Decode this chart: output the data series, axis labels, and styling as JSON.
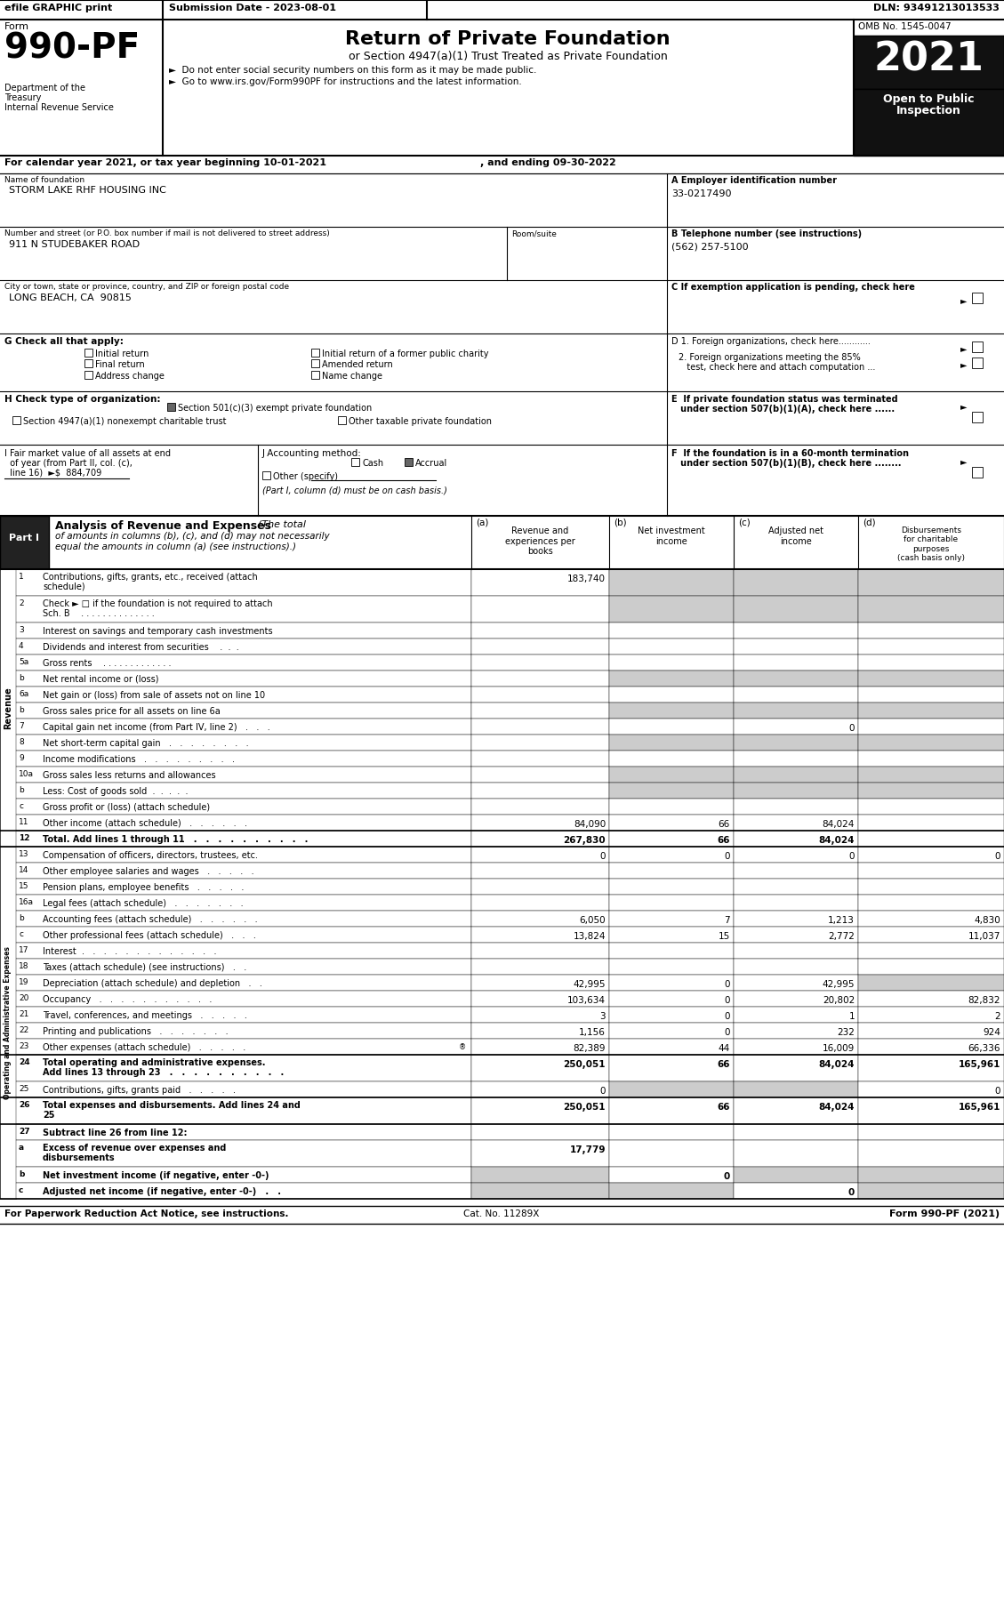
{
  "header_efile": "efile GRAPHIC print",
  "header_submission": "Submission Date - 2023-08-01",
  "header_dln": "DLN: 93491213013533",
  "form_number": "990-PF",
  "omb": "OMB No. 1545-0047",
  "title": "Return of Private Foundation",
  "subtitle": "or Section 4947(a)(1) Trust Treated as Private Foundation",
  "bullet1": "►  Do not enter social security numbers on this form as it may be made public.",
  "bullet2": "►  Go to www.irs.gov/Form990PF for instructions and the latest information.",
  "year": "2021",
  "open_public": "Open to Public",
  "inspection": "Inspection",
  "dept1": "Department of the",
  "dept2": "Treasury",
  "dept3": "Internal Revenue Service",
  "calendar": "For calendar year 2021, or tax year beginning 10-01-2021",
  "calendar2": ", and ending 09-30-2022",
  "name_label": "Name of foundation",
  "name_val": "STORM LAKE RHF HOUSING INC",
  "ein_label": "A Employer identification number",
  "ein_val": "33-0217490",
  "street_label": "Number and street (or P.O. box number if mail is not delivered to street address)",
  "street_val": "911 N STUDEBAKER ROAD",
  "room_label": "Room/suite",
  "phone_label": "B Telephone number (see instructions)",
  "phone_val": "(562) 257-5100",
  "city_label": "City or town, state or province, country, and ZIP or foreign postal code",
  "city_val": "LONG BEACH, CA  90815",
  "c_label": "C If exemption application is pending, check here",
  "g_label": "G Check all that apply:",
  "d1_label": "D 1. Foreign organizations, check here............",
  "d2a": "2. Foreign organizations meeting the 85%",
  "d2b": "   test, check here and attach computation ...",
  "e_label1": "E  If private foundation status was terminated",
  "e_label2": "   under section 507(b)(1)(A), check here ......",
  "h_label": "H Check type of organization:",
  "h1": "Section 501(c)(3) exempt private foundation",
  "h2": "Section 4947(a)(1) nonexempt charitable trust",
  "h3": "Other taxable private foundation",
  "i_line1": "I Fair market value of all assets at end",
  "i_line2": "  of year (from Part II, col. (c),",
  "i_line3": "  line 16)  ►$  884,709",
  "j_label": "J Accounting method:",
  "j_cash": "Cash",
  "j_accrual": "Accrual",
  "j_other": "Other (specify)",
  "j_note": "(Part I, column (d) must be on cash basis.)",
  "f_line1": "F  If the foundation is in a 60-month termination",
  "f_line2": "   under section 507(b)(1)(B), check here ........",
  "col_a_hdr": "(a)   Revenue and\nexperiences per\nbooks",
  "col_b_hdr": "(b)   Net investment\nincome",
  "col_c_hdr": "(c)   Adjusted net\nincome",
  "col_d_hdr": "(d)   Disbursements\nfor charitable\npurposes\n(cash basis only)",
  "footer_left": "For Paperwork Reduction Act Notice, see instructions.",
  "footer_cat": "Cat. No. 11289X",
  "footer_right": "Form 990-PF (2021)",
  "shade_gray": "#cccccc",
  "rows": [
    {
      "num": "1",
      "label": "Contributions, gifts, grants, etc., received (attach\nschedule)",
      "a": "183,740",
      "b": "",
      "c": "",
      "d": "",
      "sh_bcd": true,
      "dbl": true,
      "bold": false
    },
    {
      "num": "2",
      "label": "Check ► □ if the foundation is not required to attach\nSch. B    . . . . . . . . . . . . . .",
      "a": "",
      "b": "",
      "c": "",
      "d": "",
      "sh_bcd": true,
      "dbl": true,
      "bold": false
    },
    {
      "num": "3",
      "label": "Interest on savings and temporary cash investments",
      "a": "",
      "b": "",
      "c": "",
      "d": "",
      "sh_bcd": false,
      "dbl": false,
      "bold": false
    },
    {
      "num": "4",
      "label": "Dividends and interest from securities    .  .  .",
      "a": "",
      "b": "",
      "c": "",
      "d": "",
      "sh_bcd": false,
      "dbl": false,
      "bold": false
    },
    {
      "num": "5a",
      "label": "Gross rents    . . . . . . . . . . . . .",
      "a": "",
      "b": "",
      "c": "",
      "d": "",
      "sh_bcd": false,
      "dbl": false,
      "bold": false
    },
    {
      "num": "b",
      "label": "Net rental income or (loss)",
      "a": "",
      "b": "",
      "c": "",
      "d": "",
      "sh_bcd": true,
      "dbl": false,
      "bold": false
    },
    {
      "num": "6a",
      "label": "Net gain or (loss) from sale of assets not on line 10",
      "a": "",
      "b": "",
      "c": "",
      "d": "",
      "sh_bcd": false,
      "dbl": false,
      "bold": false
    },
    {
      "num": "b",
      "label": "Gross sales price for all assets on line 6a",
      "a": "",
      "b": "",
      "c": "",
      "d": "",
      "sh_bcd": true,
      "dbl": false,
      "bold": false
    },
    {
      "num": "7",
      "label": "Capital gain net income (from Part IV, line 2)   .   .   .",
      "a": "",
      "b": "",
      "c": "0",
      "d": "",
      "sh_bcd": false,
      "dbl": false,
      "bold": false
    },
    {
      "num": "8",
      "label": "Net short-term capital gain   .   .   .   .   .   .   .   .",
      "a": "",
      "b": "",
      "c": "",
      "d": "",
      "sh_bcd": true,
      "dbl": false,
      "bold": false
    },
    {
      "num": "9",
      "label": "Income modifications   .   .   .   .   .   .   .   .   .",
      "a": "",
      "b": "",
      "c": "",
      "d": "",
      "sh_bcd": false,
      "dbl": false,
      "bold": false
    },
    {
      "num": "10a",
      "label": "Gross sales less returns and allowances",
      "a": "",
      "b": "",
      "c": "",
      "d": "",
      "sh_bcd": true,
      "dbl": false,
      "bold": false
    },
    {
      "num": "b",
      "label": "Less: Cost of goods sold  .  .  .  .  .",
      "a": "",
      "b": "",
      "c": "",
      "d": "",
      "sh_bcd": true,
      "dbl": false,
      "bold": false
    },
    {
      "num": "c",
      "label": "Gross profit or (loss) (attach schedule)",
      "a": "",
      "b": "",
      "c": "",
      "d": "",
      "sh_bcd": false,
      "dbl": false,
      "bold": false
    },
    {
      "num": "11",
      "label": "Other income (attach schedule)   .   .   .   .   .   .",
      "a": "84,090",
      "b": "66",
      "c": "84,024",
      "d": "",
      "sh_bcd": false,
      "dbl": false,
      "bold": false
    },
    {
      "num": "12",
      "label": "Total. Add lines 1 through 11   .   .   .   .   .   .   .   .   .   .",
      "a": "267,830",
      "b": "66",
      "c": "84,024",
      "d": "",
      "sh_bcd": false,
      "dbl": false,
      "bold": true,
      "thick_top": true
    },
    {
      "num": "13",
      "label": "Compensation of officers, directors, trustees, etc.",
      "a": "0",
      "b": "0",
      "c": "0",
      "d": "0",
      "sh_bcd": false,
      "dbl": false,
      "bold": false,
      "thick_top": true
    },
    {
      "num": "14",
      "label": "Other employee salaries and wages   .   .   .   .   .",
      "a": "",
      "b": "",
      "c": "",
      "d": "",
      "sh_bcd": false,
      "dbl": false,
      "bold": false
    },
    {
      "num": "15",
      "label": "Pension plans, employee benefits   .   .   .   .   .",
      "a": "",
      "b": "",
      "c": "",
      "d": "",
      "sh_bcd": false,
      "dbl": false,
      "bold": false
    },
    {
      "num": "16a",
      "label": "Legal fees (attach schedule)   .   .   .   .   .   .   .",
      "a": "",
      "b": "",
      "c": "",
      "d": "",
      "sh_bcd": false,
      "dbl": false,
      "bold": false
    },
    {
      "num": "b",
      "label": "Accounting fees (attach schedule)   .   .   .   .   .   .",
      "a": "6,050",
      "b": "7",
      "c": "1,213",
      "d": "4,830",
      "sh_bcd": false,
      "dbl": false,
      "bold": false
    },
    {
      "num": "c",
      "label": "Other professional fees (attach schedule)   .   .   .",
      "a": "13,824",
      "b": "15",
      "c": "2,772",
      "d": "11,037",
      "sh_bcd": false,
      "dbl": false,
      "bold": false
    },
    {
      "num": "17",
      "label": "Interest  .   .   .   .   .   .   .   .   .   .   .   .   .",
      "a": "",
      "b": "",
      "c": "",
      "d": "",
      "sh_bcd": false,
      "dbl": false,
      "bold": false
    },
    {
      "num": "18",
      "label": "Taxes (attach schedule) (see instructions)   .   .",
      "a": "",
      "b": "",
      "c": "",
      "d": "",
      "sh_bcd": false,
      "dbl": false,
      "bold": false
    },
    {
      "num": "19",
      "label": "Depreciation (attach schedule) and depletion   .   .",
      "a": "42,995",
      "b": "0",
      "c": "42,995",
      "d": "",
      "sh_bcd": false,
      "dbl": false,
      "bold": false,
      "sh_d": true
    },
    {
      "num": "20",
      "label": "Occupancy   .   .   .   .   .   .   .   .   .   .   .",
      "a": "103,634",
      "b": "0",
      "c": "20,802",
      "d": "82,832",
      "sh_bcd": false,
      "dbl": false,
      "bold": false
    },
    {
      "num": "21",
      "label": "Travel, conferences, and meetings   .   .   .   .   .",
      "a": "3",
      "b": "0",
      "c": "1",
      "d": "2",
      "sh_bcd": false,
      "dbl": false,
      "bold": false
    },
    {
      "num": "22",
      "label": "Printing and publications   .   .   .   .   .   .   .",
      "a": "1,156",
      "b": "0",
      "c": "232",
      "d": "924",
      "sh_bcd": false,
      "dbl": false,
      "bold": false
    },
    {
      "num": "23",
      "label": "Other expenses (attach schedule)   .   .   .   .   .",
      "a": "82,389",
      "b": "44",
      "c": "16,009",
      "d": "66,336",
      "sh_bcd": false,
      "dbl": false,
      "bold": false,
      "icon": true
    },
    {
      "num": "24",
      "label": "Total operating and administrative expenses.\nAdd lines 13 through 23   .   .   .   .   .   .   .   .   .   .",
      "a": "250,051",
      "b": "66",
      "c": "84,024",
      "d": "165,961",
      "sh_bcd": false,
      "dbl": true,
      "bold": true,
      "thick_top": true
    },
    {
      "num": "25",
      "label": "Contributions, gifts, grants paid   .   .   .   .   .",
      "a": "0",
      "b": "",
      "c": "",
      "d": "0",
      "sh_bcd": false,
      "dbl": false,
      "bold": false,
      "sh_bc": true
    },
    {
      "num": "26",
      "label": "Total expenses and disbursements. Add lines 24 and\n25",
      "a": "250,051",
      "b": "66",
      "c": "84,024",
      "d": "165,961",
      "sh_bcd": false,
      "dbl": true,
      "bold": true,
      "thick_top": true
    },
    {
      "num": "27",
      "label": "Subtract line 26 from line 12:",
      "a": "",
      "b": "",
      "c": "",
      "d": "",
      "sh_bcd": false,
      "dbl": false,
      "bold": true,
      "thick_top": true,
      "is_header": true
    },
    {
      "num": "a",
      "label": "Excess of revenue over expenses and\ndisbursements",
      "a": "17,779",
      "b": "",
      "c": "",
      "d": "",
      "sh_bcd": false,
      "dbl": true,
      "bold": true,
      "sh_bcd_all": true
    },
    {
      "num": "b",
      "label": "Net investment income (if negative, enter -0-)",
      "a": "",
      "b": "0",
      "c": "",
      "d": "",
      "sh_bcd": false,
      "dbl": false,
      "bold": true,
      "sh_ac": true
    },
    {
      "num": "c",
      "label": "Adjusted net income (if negative, enter -0-)   .   .",
      "a": "",
      "b": "",
      "c": "0",
      "d": "",
      "sh_bcd": false,
      "dbl": false,
      "bold": true,
      "sh_abd": true
    }
  ]
}
